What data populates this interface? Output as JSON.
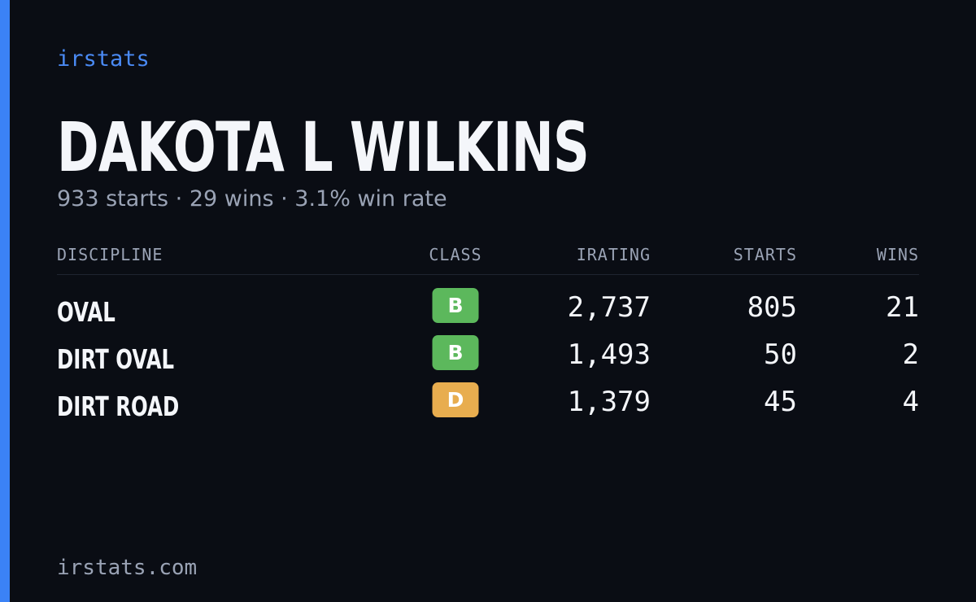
{
  "brand": "irstats",
  "name": "DAKOTA L WILKINS",
  "subtitle": "933 starts · 29 wins · 3.1% win rate",
  "table": {
    "headers": [
      "DISCIPLINE",
      "CLASS",
      "IRATING",
      "STARTS",
      "WINS"
    ],
    "rows": [
      [
        "OVAL",
        "B",
        "2,737",
        "805",
        "21"
      ],
      [
        "DIRT OVAL",
        "B",
        "1,493",
        "50",
        "2"
      ],
      [
        "DIRT ROAD",
        "D",
        "1,379",
        "45",
        "4"
      ]
    ]
  },
  "badge_colors": {
    "B": "#5cb85c",
    "D": "#e8ad4f"
  },
  "footer": "irstats.com"
}
